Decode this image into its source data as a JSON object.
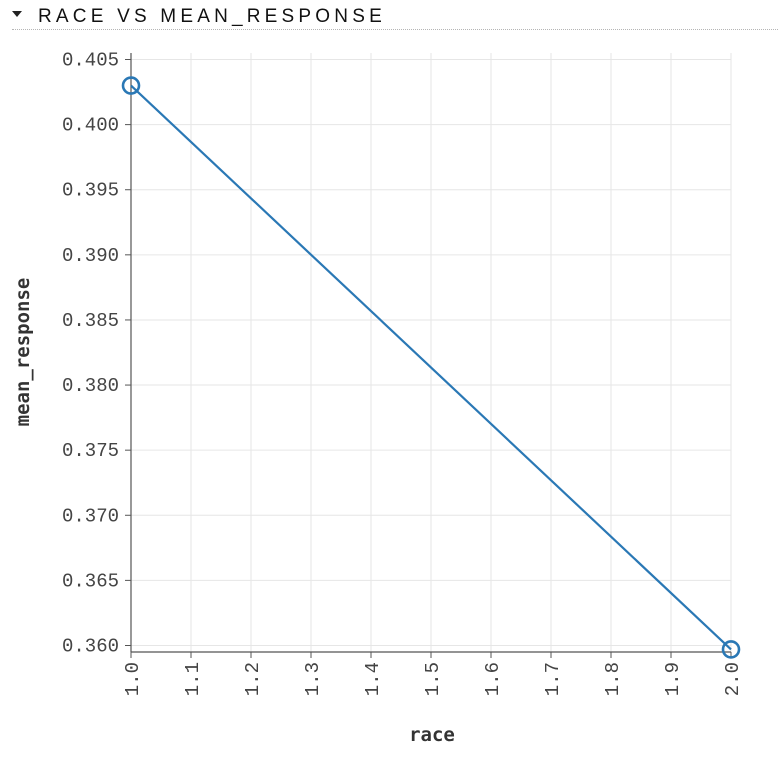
{
  "section": {
    "title": "RACE VS MEAN_RESPONSE"
  },
  "colors": {
    "line": "#2a78b5",
    "grid": "#e6e6e6",
    "axis": "#555555"
  },
  "chart_data": {
    "type": "line",
    "title": "",
    "xlabel": "race",
    "ylabel": "mean_response",
    "xlim": [
      1.0,
      2.0
    ],
    "ylim": [
      0.3595,
      0.4055
    ],
    "x_ticks": [
      "1.0",
      "1.1",
      "1.2",
      "1.3",
      "1.4",
      "1.5",
      "1.6",
      "1.7",
      "1.8",
      "1.9",
      "2.0"
    ],
    "y_ticks": [
      "0.405",
      "0.400",
      "0.395",
      "0.390",
      "0.385",
      "0.380",
      "0.375",
      "0.370",
      "0.365",
      "0.360"
    ],
    "grid": true,
    "series": [
      {
        "x": [
          1.0,
          2.0
        ],
        "y": [
          0.403,
          0.3597
        ]
      }
    ]
  }
}
